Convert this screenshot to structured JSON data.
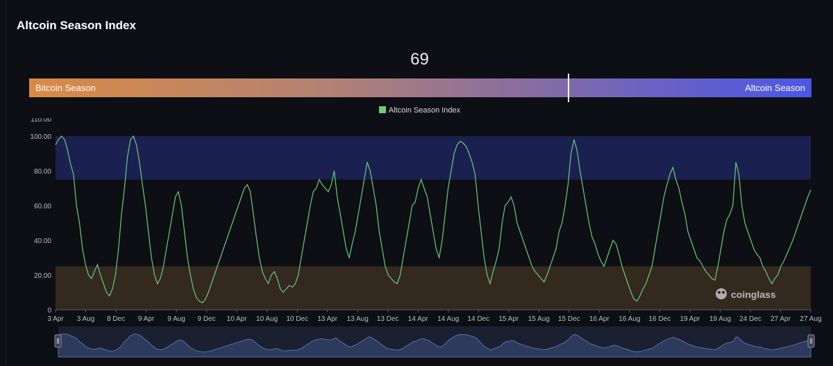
{
  "header": {
    "title": "Altcoin Season Index"
  },
  "gauge": {
    "value": "69",
    "value_num": 69,
    "left_label": "Bitcoin Season",
    "right_label": "Altcoin Season"
  },
  "legend": {
    "label": "Altcoin Season Index"
  },
  "watermark": {
    "text": "coinglass"
  },
  "colors": {
    "line": "#6ccb7c",
    "altseason_band": "#1a2150",
    "btcseason_band": "#33291f",
    "navigator_fill": "#2e3a5c"
  },
  "chart_data": {
    "type": "line",
    "series": [
      {
        "name": "Altcoin Season Index",
        "values": [
          95,
          98,
          100,
          98,
          92,
          84,
          78,
          60,
          50,
          35,
          26,
          20,
          18,
          22,
          26,
          20,
          15,
          10,
          8,
          12,
          20,
          35,
          55,
          70,
          88,
          98,
          100,
          95,
          85,
          72,
          60,
          45,
          30,
          20,
          15,
          18,
          25,
          35,
          45,
          55,
          65,
          68,
          60,
          45,
          30,
          20,
          12,
          7,
          5,
          4,
          6,
          10,
          15,
          20,
          25,
          30,
          35,
          40,
          45,
          50,
          55,
          60,
          65,
          70,
          72,
          68,
          55,
          42,
          30,
          22,
          18,
          15,
          20,
          22,
          18,
          12,
          10,
          12,
          14,
          13,
          15,
          20,
          30,
          40,
          50,
          60,
          68,
          70,
          75,
          72,
          70,
          68,
          72,
          80,
          65,
          55,
          45,
          35,
          30,
          38,
          45,
          55,
          65,
          75,
          85,
          80,
          70,
          60,
          45,
          35,
          25,
          20,
          18,
          16,
          15,
          20,
          30,
          40,
          50,
          60,
          62,
          70,
          75,
          70,
          65,
          55,
          45,
          35,
          30,
          40,
          55,
          70,
          80,
          90,
          95,
          97,
          96,
          94,
          90,
          85,
          78,
          60,
          45,
          30,
          20,
          15,
          22,
          28,
          35,
          50,
          60,
          62,
          65,
          60,
          50,
          45,
          40,
          35,
          30,
          25,
          22,
          20,
          18,
          16,
          20,
          25,
          30,
          35,
          45,
          50,
          60,
          72,
          90,
          98,
          92,
          80,
          70,
          60,
          50,
          42,
          38,
          32,
          28,
          25,
          30,
          35,
          40,
          38,
          32,
          25,
          20,
          15,
          10,
          6,
          5,
          8,
          12,
          15,
          20,
          25,
          35,
          45,
          55,
          65,
          72,
          78,
          82,
          75,
          70,
          62,
          55,
          45,
          40,
          35,
          30,
          28,
          25,
          22,
          20,
          18,
          17,
          25,
          35,
          45,
          52,
          55,
          60,
          85,
          78,
          60,
          50,
          45,
          40,
          35,
          32,
          30,
          25,
          22,
          18,
          15,
          18,
          20,
          25,
          28,
          32,
          36,
          40,
          45,
          50,
          55,
          60,
          65,
          69
        ]
      }
    ],
    "x_tick_labels": [
      "3 Apr",
      "3 Aug",
      "8 Dec",
      "9 Apr",
      "9 Aug",
      "9 Dec",
      "10 Apr",
      "10 Aug",
      "10 Dec",
      "13 Apr",
      "13 Aug",
      "13 Dec",
      "14 Apr",
      "14 Aug",
      "14 Dec",
      "15 Apr",
      "15 Aug",
      "15 Dec",
      "16 Apr",
      "16 Aug",
      "16 Dec",
      "19 Apr",
      "19 Aug",
      "24 Dec",
      "27 Apr",
      "27 Aug"
    ],
    "y_tick_labels": [
      "110.00",
      "100.00",
      "80.00",
      "60.00",
      "40.00",
      "20.00",
      "0"
    ],
    "y_ticks": [
      110,
      100,
      80,
      60,
      40,
      20,
      0
    ],
    "ylim": [
      0,
      110
    ],
    "bands": [
      {
        "from": 75,
        "to": 100,
        "color": "#1a2150"
      },
      {
        "from": 0,
        "to": 25,
        "color": "#33291f"
      }
    ],
    "grid": false,
    "legend_position": "top-center",
    "xlabel": "",
    "ylabel": ""
  }
}
